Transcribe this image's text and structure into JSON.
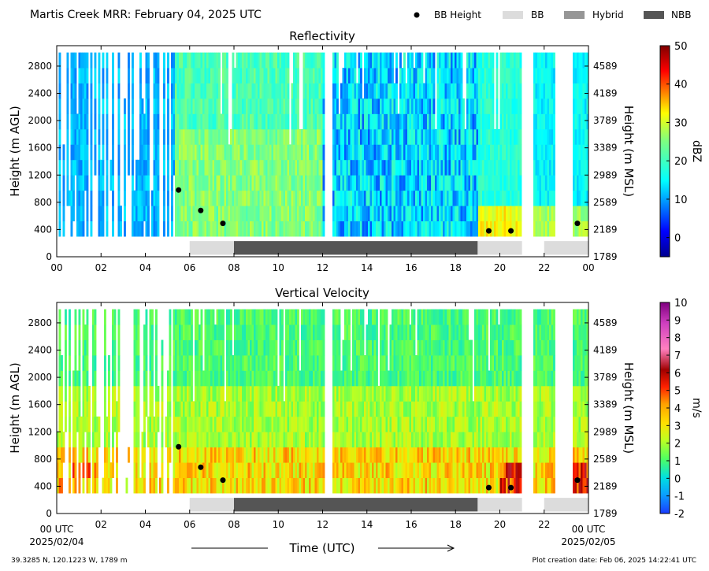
{
  "figure": {
    "title": "Martis Creek MRR:  February 04, 2025 UTC",
    "legend": [
      {
        "label": "BB Height",
        "kind": "dot",
        "color": "#000000"
      },
      {
        "label": "BB",
        "kind": "bar",
        "color": "#dcdcdc"
      },
      {
        "label": "Hybrid",
        "kind": "bar",
        "color": "#969696"
      },
      {
        "label": "NBB",
        "kind": "bar",
        "color": "#555555"
      }
    ],
    "xlabel": "Time (UTC)",
    "start_label": [
      "00 UTC",
      "2025/02/04"
    ],
    "end_label": [
      "00 UTC",
      "2025/02/05"
    ],
    "footer_left": "39.3285 N, 120.1223 W, 1789 m",
    "footer_right": "Plot creation date: Feb 06, 2025 14:22:41 UTC"
  },
  "chart_data": [
    {
      "type": "heatmap",
      "title": "Reflectivity",
      "ylabel": "Height (m AGL)",
      "y2label": "Height (m MSL)",
      "x_ticks": [
        "00",
        "02",
        "04",
        "06",
        "08",
        "10",
        "12",
        "14",
        "16",
        "18",
        "20",
        "22",
        "00"
      ],
      "xlim_hours": [
        0,
        24
      ],
      "ylim": [
        0,
        3100
      ],
      "y_ticks": [
        0,
        400,
        800,
        1200,
        1600,
        2000,
        2400,
        2800
      ],
      "y2_ticks": [
        1789,
        2189,
        2589,
        2989,
        3389,
        3789,
        4189,
        4589
      ],
      "colorbar": {
        "label": "dBZ",
        "range": [
          -5,
          50
        ],
        "ticks": [
          0,
          10,
          20,
          30,
          40,
          50
        ],
        "palette": "jet"
      },
      "bb_heights": [
        {
          "hour": 5.5,
          "height_m": 980
        },
        {
          "hour": 6.5,
          "height_m": 680
        },
        {
          "hour": 7.5,
          "height_m": 490
        },
        {
          "hour": 19.5,
          "height_m": 380
        },
        {
          "hour": 20.5,
          "height_m": 380
        },
        {
          "hour": 23.5,
          "height_m": 490
        }
      ],
      "bb_type_segments": [
        {
          "start": 6.0,
          "end": 8.0,
          "type": "BB"
        },
        {
          "start": 8.0,
          "end": 19.0,
          "type": "NBB"
        },
        {
          "start": 19.0,
          "end": 21.0,
          "type": "BB"
        },
        {
          "start": 22.0,
          "end": 24.0,
          "type": "BB"
        }
      ]
    },
    {
      "type": "heatmap",
      "title": "Vertical Velocity",
      "ylabel": "Height (m AGL)",
      "y2label": "Height (m MSL)",
      "x_ticks": [
        "",
        "02",
        "04",
        "06",
        "08",
        "10",
        "12",
        "14",
        "16",
        "18",
        "20",
        "22",
        ""
      ],
      "xlim_hours": [
        0,
        24
      ],
      "ylim": [
        0,
        3100
      ],
      "y_ticks": [
        0,
        400,
        800,
        1200,
        1600,
        2000,
        2400,
        2800
      ],
      "y2_ticks": [
        1789,
        2189,
        2589,
        2989,
        3389,
        3789,
        4189,
        4589
      ],
      "colorbar": {
        "label": "m/s",
        "range": [
          -2,
          10
        ],
        "ticks": [
          -2,
          -1,
          0,
          1,
          2,
          3,
          4,
          5,
          6,
          7,
          8,
          9,
          10
        ],
        "palette": "velocity"
      },
      "bb_heights": [
        {
          "hour": 5.5,
          "height_m": 980
        },
        {
          "hour": 6.5,
          "height_m": 680
        },
        {
          "hour": 7.5,
          "height_m": 490
        },
        {
          "hour": 19.5,
          "height_m": 380
        },
        {
          "hour": 20.5,
          "height_m": 380
        },
        {
          "hour": 23.5,
          "height_m": 490
        }
      ],
      "bb_type_segments": [
        {
          "start": 6.0,
          "end": 8.0,
          "type": "BB"
        },
        {
          "start": 8.0,
          "end": 19.0,
          "type": "NBB"
        },
        {
          "start": 19.0,
          "end": 21.0,
          "type": "BB"
        },
        {
          "start": 22.0,
          "end": 24.0,
          "type": "BB"
        }
      ]
    }
  ]
}
